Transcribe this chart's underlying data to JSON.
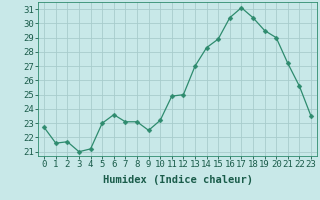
{
  "x": [
    0,
    1,
    2,
    3,
    4,
    5,
    6,
    7,
    8,
    9,
    10,
    11,
    12,
    13,
    14,
    15,
    16,
    17,
    18,
    19,
    20,
    21,
    22,
    23
  ],
  "y": [
    22.7,
    21.6,
    21.7,
    21.0,
    21.2,
    23.0,
    23.6,
    23.1,
    23.1,
    22.5,
    23.2,
    24.9,
    25.0,
    27.0,
    28.3,
    28.9,
    30.4,
    31.1,
    30.4,
    29.5,
    29.0,
    27.2,
    25.6,
    23.5
  ],
  "line_color": "#2e8b6e",
  "marker": "D",
  "marker_size": 2.5,
  "bg_color": "#c8e8e8",
  "grid_color": "#a8cccc",
  "xlabel": "Humidex (Indice chaleur)",
  "ylabel": "",
  "ylim": [
    20.7,
    31.5
  ],
  "xlim": [
    -0.5,
    23.5
  ],
  "yticks": [
    21,
    22,
    23,
    24,
    25,
    26,
    27,
    28,
    29,
    30,
    31
  ],
  "xticks": [
    0,
    1,
    2,
    3,
    4,
    5,
    6,
    7,
    8,
    9,
    10,
    11,
    12,
    13,
    14,
    15,
    16,
    17,
    18,
    19,
    20,
    21,
    22,
    23
  ],
  "tick_color": "#1a5c4a",
  "axis_color": "#2e8b6e",
  "tick_fontsize": 6.5,
  "xlabel_fontsize": 7.5
}
